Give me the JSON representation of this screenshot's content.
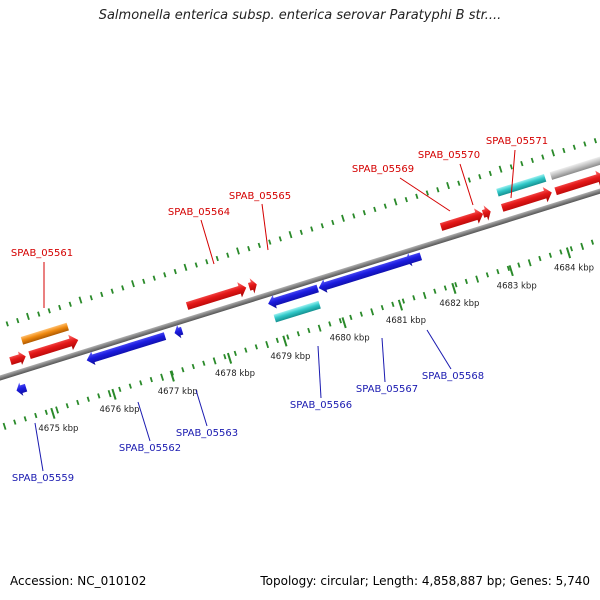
{
  "title": "Salmonella enterica subsp. enterica serovar Paratyphi B str....",
  "footer": {
    "accession": "Accession: NC_010102",
    "topology": "Topology: circular; Length: 4,858,887 bp; Genes: 5,740"
  },
  "colors": {
    "forward_label": "#d40000",
    "reverse_label": "#1a1ab0",
    "backbone": "#7a7a7a",
    "tick": "#2a8a2a",
    "forward_gene": "#e02020",
    "reverse_gene": "#2020dd",
    "orange_gene": "#f08a10",
    "cyan_gene": "#30c8c8",
    "gray_gene": "#c0c0c0",
    "green_gene": "#5a8a2a"
  },
  "scale": {
    "unit": "kbp",
    "labels": [
      "4675 kbp",
      "4676 kbp",
      "4677 kbp",
      "4678 kbp",
      "4679 kbp",
      "4680 kbp",
      "4681 kbp",
      "4682 kbp",
      "4683 kbp",
      "4684 kbp"
    ]
  },
  "forward_genes": [
    {
      "label": "SPAB_05561"
    },
    {
      "label": "SPAB_05564"
    },
    {
      "label": "SPAB_05565"
    },
    {
      "label": "SPAB_05569"
    },
    {
      "label": "SPAB_05570"
    },
    {
      "label": "SPAB_05571"
    }
  ],
  "reverse_genes": [
    {
      "label": "SPAB_05559"
    },
    {
      "label": "SPAB_05562"
    },
    {
      "label": "SPAB_05563"
    },
    {
      "label": "SPAB_05566"
    },
    {
      "label": "SPAB_05567"
    },
    {
      "label": "SPAB_05568"
    }
  ]
}
